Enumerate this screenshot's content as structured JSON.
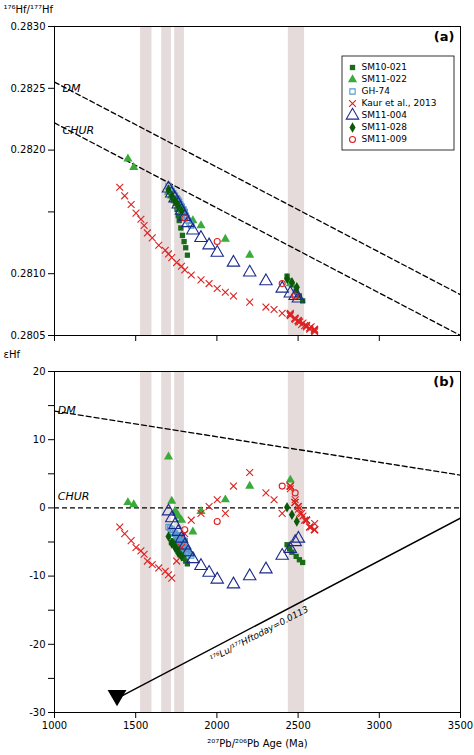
{
  "chart_data": [
    {
      "type": "scatter",
      "title": "(a)",
      "ylabel": "¹⁷⁶Hf/¹⁷⁷Hf",
      "xlim": [
        1000,
        3500
      ],
      "xticks": [
        1000,
        1500,
        2000,
        2500,
        3000,
        3500
      ],
      "ylim": [
        0.2805,
        0.283
      ],
      "yticks": [
        0.2805,
        {
          "value": 0.281,
          "label": "0.2810"
        },
        {
          "value": 0.2815,
          "label": null
        },
        {
          "value": 0.282,
          "label": "0.2820"
        },
        0.2825,
        {
          "value": 0.283,
          "label": "0.2830"
        }
      ],
      "tick_labels": "y",
      "grid": false,
      "legend": "upper right",
      "bands": [
        {
          "x1": 1530,
          "x2": 1600,
          "color": "#c8b0b0"
        },
        {
          "x1": 1660,
          "x2": 1720,
          "color": "#c8b0b0"
        },
        {
          "x1": 1740,
          "x2": 1800,
          "color": "#c8b0b0"
        },
        {
          "x1": 2440,
          "x2": 2540,
          "color": "#c8b0b0"
        }
      ],
      "lines": [
        {
          "x": [
            1000,
            3500
          ],
          "values": [
            0.28255,
            0.28083
          ],
          "color": "#000000",
          "line_style": "dashed"
        },
        {
          "x": [
            1000,
            3500
          ],
          "values": [
            0.28222,
            0.2805
          ],
          "color": "#000000",
          "line_style": "dashed"
        }
      ],
      "annotations": [
        {
          "text": "DM",
          "x": 1050,
          "y": 0.28247
        },
        {
          "text": "CHUR",
          "x": 1050,
          "y": 0.28213
        }
      ],
      "series": [
        {
          "name": "SM10-021",
          "color": "#1a6b1a",
          "marker": "square",
          "x": [
            1720,
            1730,
            1745,
            1755,
            1762,
            1768,
            1778,
            1788,
            1798,
            1808,
            1818,
            2432,
            2448,
            2462,
            2488,
            2508,
            2528
          ],
          "values": [
            0.28163,
            0.2816,
            0.28157,
            0.28152,
            0.28147,
            0.28143,
            0.28137,
            0.28131,
            0.28126,
            0.28121,
            0.28115,
            0.28098,
            0.28094,
            0.28091,
            0.28086,
            0.28082,
            0.28078
          ]
        },
        {
          "name": "SM11-022",
          "color": "#3aaa3a",
          "marker": "triangle",
          "x": [
            1452,
            1488,
            1702,
            1722,
            1742,
            1752,
            1762,
            1782,
            1852,
            1902,
            2052,
            2202,
            2452
          ],
          "values": [
            0.28193,
            0.28186,
            0.28166,
            0.28163,
            0.28159,
            0.28157,
            0.28154,
            0.2815,
            0.28143,
            0.28139,
            0.28128,
            0.28115,
            0.28092
          ]
        },
        {
          "name": "GH-74",
          "color": "#5599cc",
          "marker": "square-open",
          "x": [
            1702,
            1712,
            1722,
            1732,
            1742,
            1752,
            1757,
            1762,
            1767,
            1772,
            1777,
            1782,
            1787,
            1792,
            1797,
            1802,
            1808,
            1815,
            1822,
            1832,
            1842,
            1752,
            1762,
            1772,
            1782,
            1792,
            1762,
            1772,
            1782,
            1792,
            1762,
            1772,
            1782,
            1792,
            1802
          ],
          "values": [
            0.28171,
            0.28169,
            0.28167,
            0.28165,
            0.28163,
            0.28161,
            0.2816,
            0.28159,
            0.28158,
            0.28156,
            0.28155,
            0.28154,
            0.28152,
            0.28151,
            0.2815,
            0.28148,
            0.28147,
            0.28145,
            0.28143,
            0.28141,
            0.28139,
            0.2816,
            0.28158,
            0.28156,
            0.28154,
            0.28152,
            0.28158,
            0.28156,
            0.28154,
            0.28152,
            0.28157,
            0.28155,
            0.28153,
            0.28151,
            0.2815
          ]
        },
        {
          "name": "Kaur et al., 2013",
          "color": "#dd2222",
          "marker": "x",
          "x": [
            1402,
            1432,
            1472,
            1502,
            1532,
            1552,
            1572,
            1602,
            1642,
            1682,
            1702,
            1722,
            1752,
            1782,
            1802,
            1842,
            1902,
            1952,
            2002,
            2052,
            2102,
            2202,
            2302,
            2352,
            2402,
            2452,
            2482,
            2502,
            2522,
            2552,
            2572,
            2602,
            2452,
            2482,
            2502,
            2552,
            2602,
            2452,
            2502,
            2552,
            2602,
            2500,
            2550,
            2600,
            2480,
            2530,
            2580,
            2450,
            2480,
            2510,
            2540,
            2570,
            2600
          ],
          "values": [
            0.2817,
            0.28163,
            0.28156,
            0.28149,
            0.28144,
            0.28139,
            0.28133,
            0.28129,
            0.28123,
            0.28119,
            0.28116,
            0.28113,
            0.28109,
            0.28106,
            0.28103,
            0.28099,
            0.28095,
            0.28092,
            0.28088,
            0.28085,
            0.28082,
            0.28077,
            0.28073,
            0.28071,
            0.28068,
            0.28066,
            0.28063,
            0.28061,
            0.28059,
            0.28057,
            0.28055,
            0.28053,
            0.28067,
            0.28064,
            0.28062,
            0.28058,
            0.28054,
            0.28068,
            0.28062,
            0.28058,
            0.28055,
            0.28062,
            0.28058,
            0.28055,
            0.28064,
            0.2806,
            0.28057,
            0.28067,
            0.28064,
            0.28061,
            0.28058,
            0.28056,
            0.28054
          ]
        },
        {
          "name": "SM11-004",
          "color": "#1a2a8c",
          "marker": "triangle-open",
          "x": [
            1702,
            1722,
            1742,
            1762,
            1782,
            1802,
            1822,
            1852,
            1902,
            1952,
            2002,
            2102,
            2202,
            2302,
            2402,
            2452,
            2482,
            2502
          ],
          "values": [
            0.28169,
            0.28165,
            0.28161,
            0.28156,
            0.28151,
            0.28146,
            0.28141,
            0.28135,
            0.28129,
            0.28123,
            0.28117,
            0.28109,
            0.28101,
            0.28094,
            0.28088,
            0.28084,
            0.28082,
            0.2808
          ]
        },
        {
          "name": "SM11-028",
          "color": "#0a5a0a",
          "marker": "diamond",
          "x": [
            1702,
            1722,
            1742,
            1752,
            1762,
            1782,
            2432,
            2462,
            2492
          ],
          "values": [
            0.28168,
            0.28163,
            0.28159,
            0.28157,
            0.28155,
            0.28151,
            0.28096,
            0.28093,
            0.28089
          ]
        },
        {
          "name": "SM11-009",
          "color": "#dd2222",
          "marker": "circle-open",
          "x": [
            1802,
            2002,
            2402,
            2482
          ],
          "values": [
            0.28145,
            0.28126,
            0.28092,
            0.28082
          ]
        }
      ]
    },
    {
      "type": "scatter",
      "title": "(b)",
      "xlabel": "²⁰⁷Pb/²⁰⁶Pb Age (Ma)",
      "ylabel": "εHf",
      "xlim": [
        1000,
        3500
      ],
      "xticks": [
        1000,
        1500,
        2000,
        2500,
        3000,
        3500
      ],
      "ylim": [
        -30,
        20
      ],
      "yticks": [
        -30,
        {
          "value": -25,
          "label": null
        },
        -20,
        {
          "value": -15,
          "label": null
        },
        -10,
        {
          "value": -5,
          "label": null
        },
        0,
        {
          "value": 5,
          "label": null
        },
        10,
        {
          "value": 15,
          "label": null
        },
        20
      ],
      "grid": false,
      "bands": [
        {
          "x1": 1530,
          "x2": 1600,
          "color": "#c8b0b0"
        },
        {
          "x1": 1660,
          "x2": 1720,
          "color": "#c8b0b0"
        },
        {
          "x1": 1740,
          "x2": 1800,
          "color": "#c8b0b0"
        },
        {
          "x1": 2440,
          "x2": 2540,
          "color": "#c8b0b0"
        }
      ],
      "lines": [
        {
          "x": [
            1000,
            3500
          ],
          "values": [
            14.2,
            4.8
          ],
          "color": "#000000",
          "line_style": "dashed"
        },
        {
          "hline": 0,
          "color": "#000000",
          "line_style": "dashed"
        },
        {
          "x": [
            1380,
            3500
          ],
          "values": [
            -28,
            -1.5
          ],
          "color": "#000000",
          "line_style": "solid",
          "label": "¹⁷⁶Lu/¹⁷⁷Hftoday=0.0113",
          "label_x": 1950,
          "label_y": -21.5
        }
      ],
      "points": [
        {
          "x": 1385,
          "y": -27.5,
          "marker": "triangle-down",
          "color": "#000000"
        }
      ],
      "annotations": [
        {
          "text": "DM",
          "x": 1020,
          "y": 13.8
        },
        {
          "text": "CHUR",
          "x": 1020,
          "y": 1.2
        }
      ],
      "series": [
        {
          "name": "SM10-021",
          "color": "#1a6b1a",
          "marker": "square",
          "x": [
            1720,
            1730,
            1745,
            1755,
            1762,
            1768,
            1778,
            1788,
            1798,
            1808,
            1818,
            2432,
            2448,
            2462,
            2488,
            2508,
            2528
          ],
          "values": [
            -5.1,
            -4.8,
            -5.0,
            -5.4,
            -5.8,
            -6.1,
            -6.6,
            -7.0,
            -7.4,
            -7.8,
            -8.2,
            -5.4,
            -6.0,
            -6.5,
            -7.1,
            -7.6,
            -8.0
          ]
        },
        {
          "name": "SM11-022",
          "color": "#3aaa3a",
          "marker": "triangle",
          "x": [
            1452,
            1488,
            1702,
            1722,
            1742,
            1752,
            1762,
            1782,
            1852,
            1902,
            2052,
            2202,
            2452
          ],
          "values": [
            0.8,
            0.5,
            7.5,
            1.0,
            -0.5,
            -0.8,
            -1.2,
            -1.8,
            -3.5,
            -0.5,
            1.2,
            3.2,
            4.1
          ]
        },
        {
          "name": "GH-74",
          "color": "#5599cc",
          "marker": "square-open",
          "x": [
            1702,
            1712,
            1722,
            1732,
            1742,
            1752,
            1757,
            1762,
            1767,
            1772,
            1777,
            1782,
            1787,
            1792,
            1797,
            1802,
            1808,
            1815,
            1822,
            1832,
            1842,
            1752,
            1762,
            1772,
            1782,
            1792,
            1762,
            1772,
            1782,
            1792,
            1762,
            1772,
            1782,
            1792,
            1802
          ],
          "values": [
            -2.8,
            -3.0,
            -3.2,
            -3.5,
            -3.8,
            -4.0,
            -4.2,
            -4.4,
            -4.6,
            -4.8,
            -5.0,
            -5.2,
            -5.4,
            -5.6,
            -5.8,
            -6.0,
            -6.2,
            -6.4,
            -6.6,
            -6.8,
            -7.0,
            -4.1,
            -4.3,
            -4.5,
            -4.7,
            -4.9,
            -4.2,
            -4.4,
            -4.6,
            -4.8,
            -4.1,
            -4.3,
            -4.5,
            -4.7,
            -4.9
          ]
        },
        {
          "name": "Kaur et al., 2013",
          "color": "#dd2222",
          "marker": "x",
          "x": [
            1402,
            1432,
            1472,
            1502,
            1532,
            1552,
            1572,
            1602,
            1642,
            1682,
            1702,
            1722,
            1752,
            1782,
            1802,
            1842,
            1902,
            1952,
            2002,
            2052,
            2102,
            2202,
            2302,
            2352,
            2402,
            2452,
            2482,
            2502,
            2522,
            2552,
            2572,
            2602,
            2452,
            2482,
            2502,
            2552,
            2602,
            2452,
            2502,
            2552,
            2602,
            2500,
            2550,
            2600,
            2480,
            2530,
            2580,
            2450,
            2480,
            2510,
            2540,
            2570,
            2600
          ],
          "values": [
            -2.8,
            -3.8,
            -4.8,
            -5.8,
            -6.3,
            -6.8,
            -7.8,
            -8.3,
            -8.8,
            -9.3,
            -9.8,
            -10.3,
            -7.8,
            -5.8,
            -3.8,
            -1.8,
            -0.8,
            0.2,
            1.2,
            -0.8,
            3.2,
            5.2,
            2.2,
            1.2,
            -0.8,
            3.2,
            1.2,
            0.2,
            -0.8,
            -1.8,
            -2.8,
            -2.3,
            2.8,
            0.8,
            -0.2,
            -1.8,
            -3.2,
            3.2,
            0.2,
            -1.8,
            -3.2,
            0.2,
            -1.8,
            -3.2,
            0.8,
            -1.2,
            -2.8,
            3.2,
            0.8,
            -0.8,
            -1.8,
            -2.8,
            -3.2
          ]
        },
        {
          "name": "SM11-004",
          "color": "#1a2a8c",
          "marker": "triangle-open",
          "x": [
            1702,
            1722,
            1742,
            1762,
            1782,
            1802,
            1822,
            1852,
            1902,
            1952,
            2002,
            2102,
            2202,
            2302,
            2402,
            2452,
            2482,
            2502
          ],
          "values": [
            -0.5,
            -1.5,
            -2.5,
            -3.5,
            -4.5,
            -5.5,
            -6.5,
            -7.5,
            -8.5,
            -9.5,
            -10.5,
            -11.2,
            -10.0,
            -9.0,
            -7.0,
            -6.0,
            -5.0,
            -4.5
          ]
        },
        {
          "name": "SM11-028",
          "color": "#0a5a0a",
          "marker": "diamond",
          "x": [
            1702,
            1722,
            1742,
            1752,
            1762,
            1782,
            2432,
            2462,
            2492
          ],
          "values": [
            -4.2,
            -5.2,
            -5.8,
            -6.1,
            -6.6,
            -7.1,
            0.1,
            -1.0,
            -2.0
          ]
        },
        {
          "name": "SM11-009",
          "color": "#dd2222",
          "marker": "circle-open",
          "x": [
            1802,
            2002,
            2402,
            2482
          ],
          "values": [
            -3.2,
            -2.0,
            3.2,
            2.2
          ]
        }
      ]
    }
  ]
}
